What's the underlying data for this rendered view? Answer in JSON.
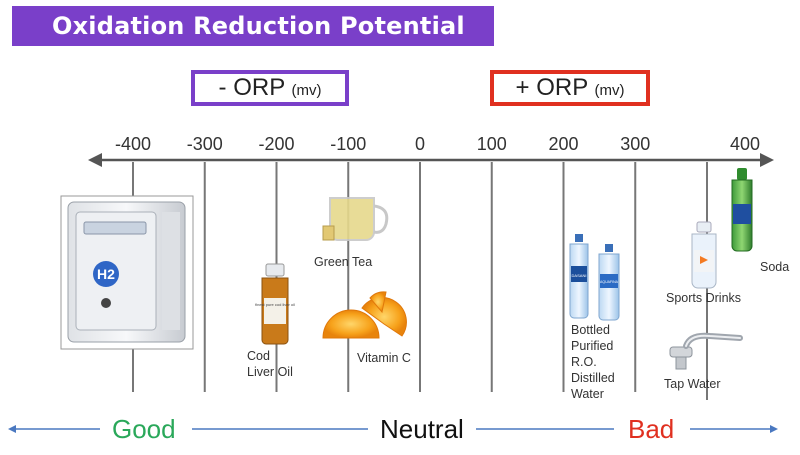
{
  "title": "Oxidation Reduction Potential",
  "negative_box": {
    "label": "- ORP",
    "unit": "(mv)"
  },
  "positive_box": {
    "label": "+ ORP",
    "unit": "(mv)"
  },
  "scale": {
    "ticks": [
      {
        "value": -400,
        "label": "-400"
      },
      {
        "value": -300,
        "label": "-300"
      },
      {
        "value": -200,
        "label": "-200"
      },
      {
        "value": -100,
        "label": "-100"
      },
      {
        "value": 0,
        "label": "0"
      },
      {
        "value": 100,
        "label": "100"
      },
      {
        "value": 200,
        "label": "200"
      },
      {
        "value": 300,
        "label": "300"
      },
      {
        "value": 400,
        "label": "400"
      }
    ]
  },
  "items": {
    "cod_liver_oil": [
      "Cod",
      "Liver Oil"
    ],
    "green_tea": "Green Tea",
    "vitamin_c": "Vitamin C",
    "bottled_water": [
      "Bottled",
      "Purified",
      "R.O.",
      "Distilled",
      "Water"
    ],
    "sports_drinks": "Sports Drinks",
    "soda": "Soda",
    "tap_water": "Tap Water"
  },
  "product_text": {
    "h2_machine_logo": "H2",
    "bottle_brand": "DASANI",
    "bottle_brand_2": "AQUAFINA",
    "cod_oil_bottle": "finest pure cod liver oil"
  },
  "bottom_scale": {
    "good": "Good",
    "neutral": "Neutral",
    "bad": "Bad"
  },
  "colors": {
    "purple": "#7a3fc9",
    "red": "#e03020",
    "green": "#2aa85a",
    "arrow_blue": "#4a78c0"
  }
}
